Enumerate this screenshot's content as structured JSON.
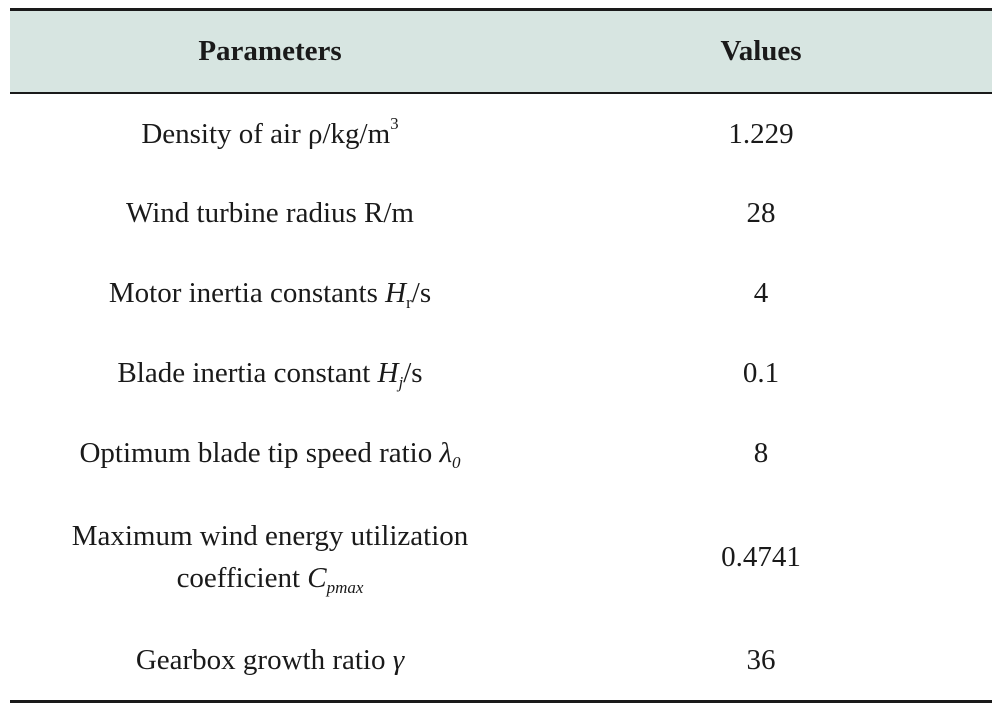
{
  "table": {
    "headers": [
      "Parameters",
      "Values"
    ],
    "rows": [
      {
        "param": {
          "text": "Density of air ρ/kg/m",
          "sup": "3"
        },
        "value": "1.229"
      },
      {
        "param": {
          "text": "Wind turbine radius R/m"
        },
        "value": "28"
      },
      {
        "param": {
          "text": "Motor inertia constants ",
          "var": "H",
          "sub": "r",
          "suffix": "/s"
        },
        "value": "4"
      },
      {
        "param": {
          "text": "Blade inertia constant ",
          "var": "H",
          "sub": "j",
          "suffix": "/s"
        },
        "value": "0.1"
      },
      {
        "param": {
          "text": "Optimum blade tip speed ratio ",
          "var": "λ",
          "sub": "0"
        },
        "value": "8"
      },
      {
        "param": {
          "line1": "Maximum wind energy utilization",
          "text": "coefficient ",
          "var": "C",
          "sub": "pmax"
        },
        "value": "0.4741"
      },
      {
        "param": {
          "text": "Gearbox growth ratio ",
          "var": "γ"
        },
        "value": "36"
      }
    ]
  }
}
